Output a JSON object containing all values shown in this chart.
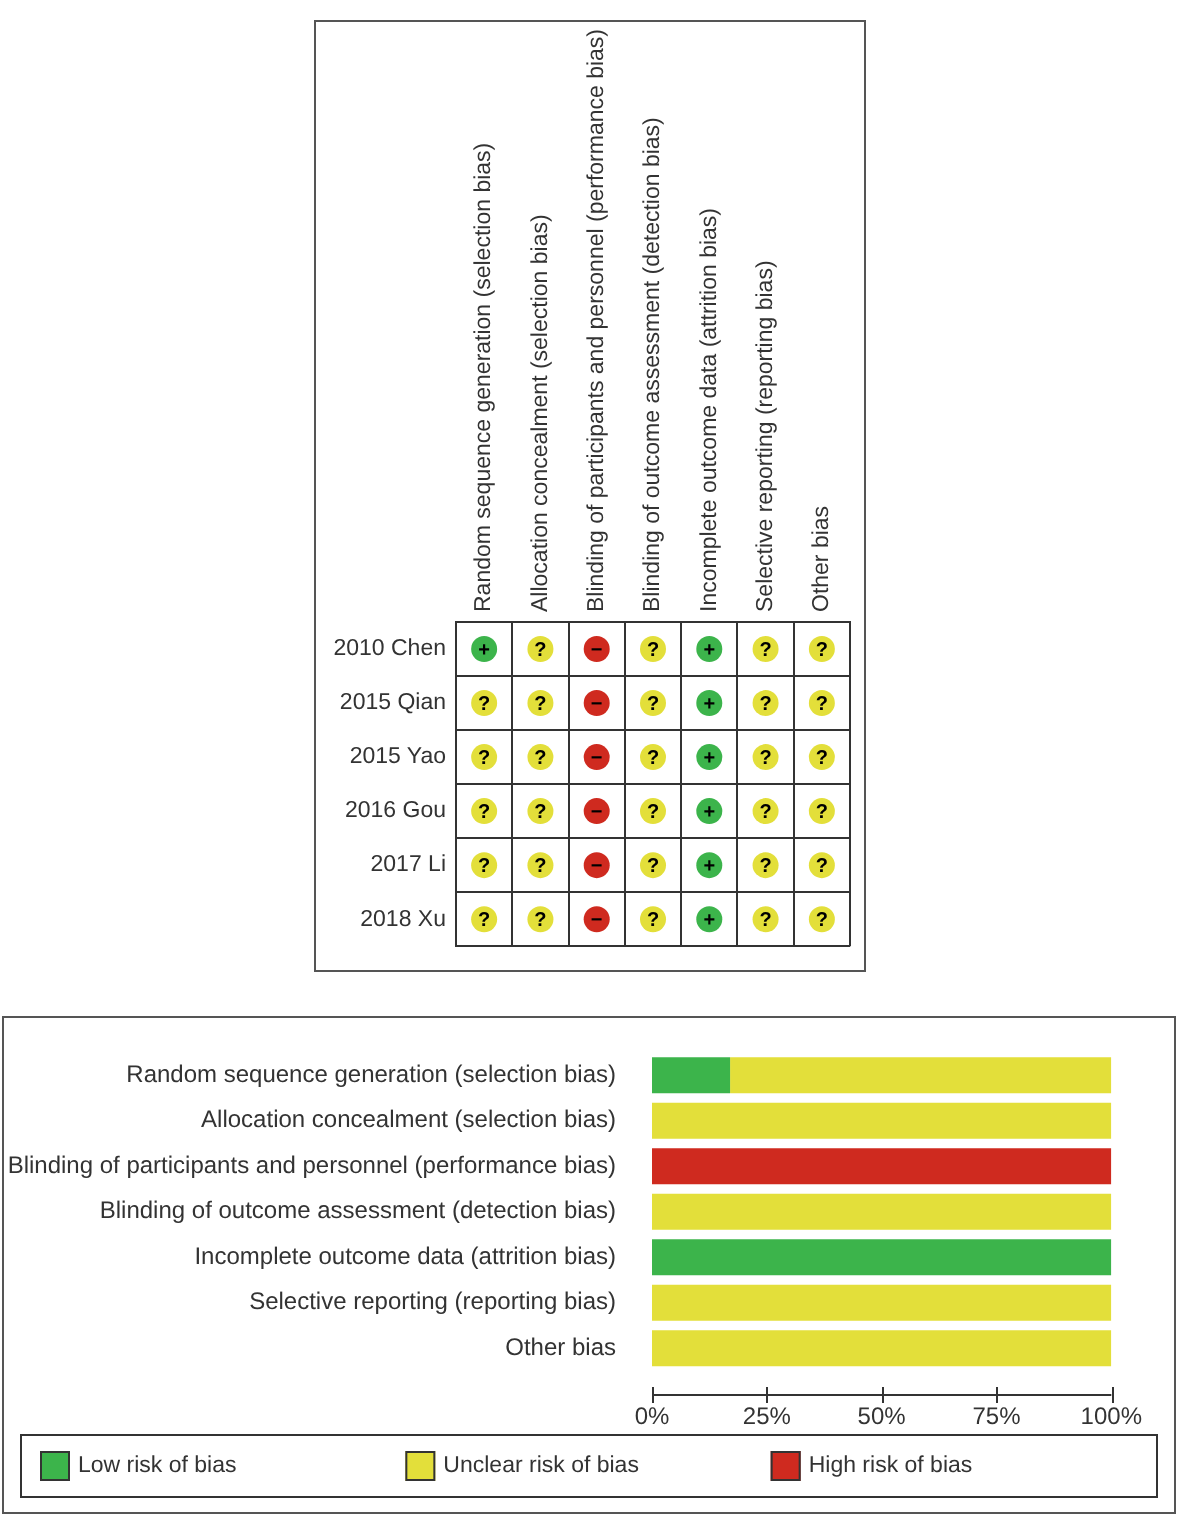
{
  "chart_data": [
    {
      "type": "heatmap",
      "grid": true,
      "categories": [
        "Random sequence generation (selection bias)",
        "Allocation concealment (selection bias)",
        "Blinding of participants and personnel (performance bias)",
        "Blinding of outcome assessment (detection bias)",
        "Incomplete outcome data (attrition bias)",
        "Selective reporting (reporting bias)",
        "Other bias"
      ],
      "y_categories": [
        "2010 Chen",
        "2015 Qian",
        "2015 Yao",
        "2016 Gou",
        "2017 Li",
        "2018 Xu"
      ],
      "cells": [
        [
          "+",
          "?",
          "−",
          "?",
          "+",
          "?",
          "?"
        ],
        [
          "?",
          "?",
          "−",
          "?",
          "+",
          "?",
          "?"
        ],
        [
          "?",
          "?",
          "−",
          "?",
          "+",
          "?",
          "?"
        ],
        [
          "?",
          "?",
          "−",
          "?",
          "+",
          "?",
          "?"
        ],
        [
          "?",
          "?",
          "−",
          "?",
          "+",
          "?",
          "?"
        ],
        [
          "?",
          "?",
          "−",
          "?",
          "+",
          "?",
          "?"
        ]
      ],
      "colors": [
        [
          "#3cb44b",
          "#e3df3a",
          "#cf2a1f",
          "#e3df3a",
          "#3cb44b",
          "#e3df3a",
          "#e3df3a"
        ],
        [
          "#e3df3a",
          "#e3df3a",
          "#cf2a1f",
          "#e3df3a",
          "#3cb44b",
          "#e3df3a",
          "#e3df3a"
        ],
        [
          "#e3df3a",
          "#e3df3a",
          "#cf2a1f",
          "#e3df3a",
          "#3cb44b",
          "#e3df3a",
          "#e3df3a"
        ],
        [
          "#e3df3a",
          "#e3df3a",
          "#cf2a1f",
          "#e3df3a",
          "#3cb44b",
          "#e3df3a",
          "#e3df3a"
        ],
        [
          "#e3df3a",
          "#e3df3a",
          "#cf2a1f",
          "#e3df3a",
          "#3cb44b",
          "#e3df3a",
          "#e3df3a"
        ],
        [
          "#e3df3a",
          "#e3df3a",
          "#cf2a1f",
          "#e3df3a",
          "#3cb44b",
          "#e3df3a",
          "#e3df3a"
        ]
      ]
    },
    {
      "type": "bar",
      "orientation": "horizontal",
      "stacked": true,
      "categories": [
        "Random sequence generation (selection bias)",
        "Allocation concealment (selection bias)",
        "Blinding of participants and personnel (performance bias)",
        "Blinding of outcome assessment (detection bias)",
        "Incomplete outcome data (attrition bias)",
        "Selective reporting (reporting bias)",
        "Other bias"
      ],
      "series": [
        {
          "name": "Low risk of bias",
          "color": "#3cb44b",
          "values": [
            17,
            0,
            0,
            0,
            100,
            0,
            0
          ]
        },
        {
          "name": "Unclear risk of bias",
          "color": "#e3df3a",
          "values": [
            83,
            100,
            0,
            100,
            0,
            100,
            100
          ]
        },
        {
          "name": "High risk of bias",
          "color": "#cf2a1f",
          "values": [
            0,
            0,
            100,
            0,
            0,
            0,
            0
          ]
        }
      ],
      "xlim": [
        0,
        100
      ],
      "xticks": [
        {
          "value": 0,
          "label": "0%"
        },
        {
          "value": 25,
          "label": "25%"
        },
        {
          "value": 50,
          "label": "50%"
        },
        {
          "value": 75,
          "label": "75%"
        },
        {
          "value": 100,
          "label": "100%"
        }
      ],
      "legend": "bottom"
    }
  ]
}
